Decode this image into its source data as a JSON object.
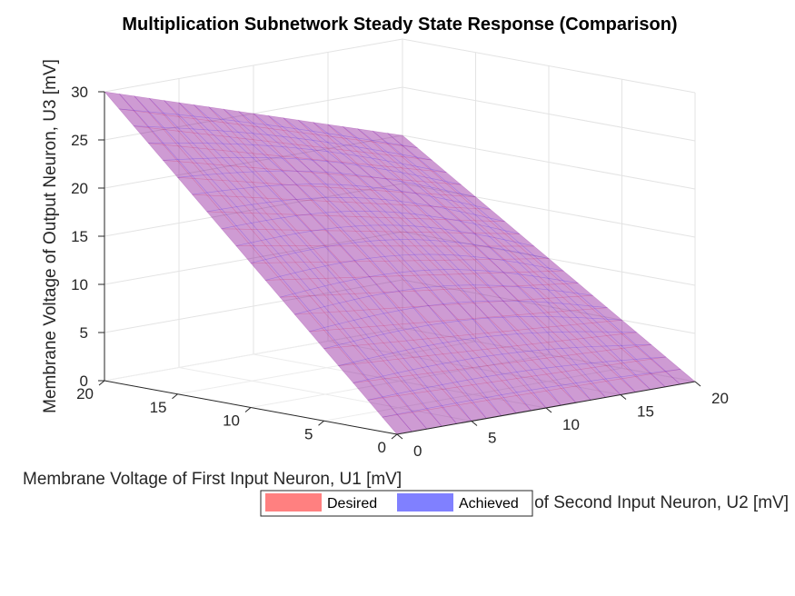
{
  "chart_data": {
    "type": "surface3d",
    "title": "Multiplication Subnetwork Steady State Response (Comparison)",
    "xlabel": "Membrane Voltage of First Input Neuron, U1 [mV]",
    "ylabel": "Membrane Voltage of Second Input Neuron, U2 [mV]",
    "zlabel": "Membrane Voltage of Output Neuron, U3 [mV]",
    "xlim": [
      0,
      20
    ],
    "ylim": [
      0,
      20
    ],
    "zlim": [
      0,
      30
    ],
    "x_ticks": [
      "0",
      "5",
      "10",
      "15",
      "20"
    ],
    "y_ticks": [
      "20",
      "15",
      "10",
      "5",
      "0"
    ],
    "z_ticks": [
      "0",
      "5",
      "10",
      "15",
      "20",
      "25",
      "30"
    ],
    "grid": true,
    "legend_position": "bottom",
    "series": [
      {
        "name": "Desired",
        "color": "#ff0000",
        "corners": [
          {
            "u1": 0,
            "u2": 0,
            "u3": 0
          },
          {
            "u1": 20,
            "u2": 0,
            "u3": 30
          },
          {
            "u1": 20,
            "u2": 20,
            "u3": 20
          },
          {
            "u1": 0,
            "u2": 20,
            "u3": 0
          }
        ]
      },
      {
        "name": "Achieved",
        "color": "#0000ff",
        "corners": [
          {
            "u1": 0,
            "u2": 0,
            "u3": 0
          },
          {
            "u1": 20,
            "u2": 0,
            "u3": 30
          },
          {
            "u1": 20,
            "u2": 20,
            "u3": 20
          },
          {
            "u1": 0,
            "u2": 20,
            "u3": 0
          }
        ]
      }
    ]
  }
}
